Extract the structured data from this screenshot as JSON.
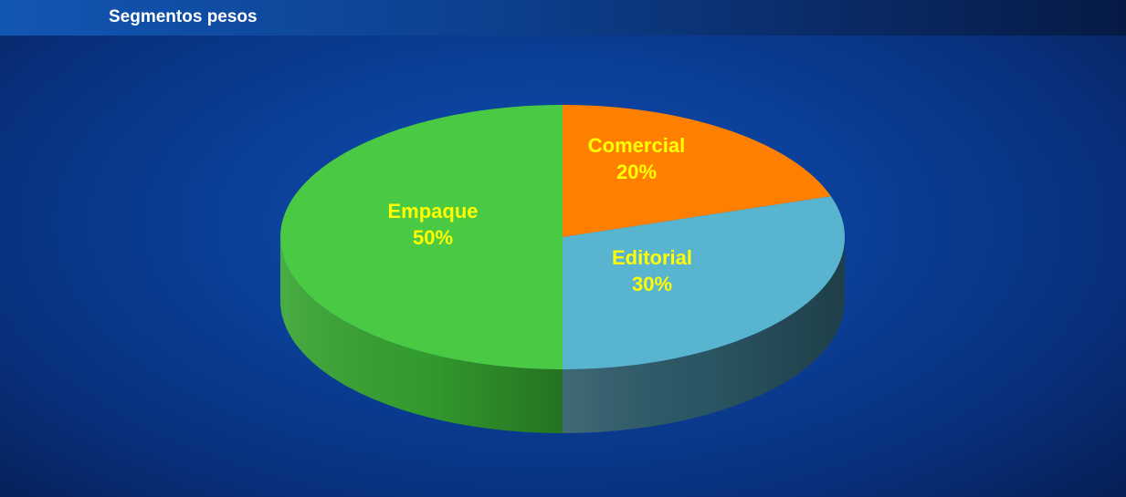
{
  "page": {
    "title": "Segmentos pesos"
  },
  "chart_data": {
    "type": "pie",
    "style": "3d",
    "slices": [
      {
        "label": "Comercial",
        "value": 20,
        "percent_label": "20%",
        "color": "#ff7f00",
        "side_color": "#b85a00"
      },
      {
        "label": "Editorial",
        "value": 30,
        "percent_label": "30%",
        "color": "#59b4cf",
        "side_color": "#2c5a68"
      },
      {
        "label": "Empaque",
        "value": 50,
        "percent_label": "50%",
        "color": "#4ac944",
        "side_color": "#35a330"
      }
    ],
    "label_color": "#ffff00",
    "background_color": "#0b3f98",
    "title_bar_color": "#1256b4"
  }
}
